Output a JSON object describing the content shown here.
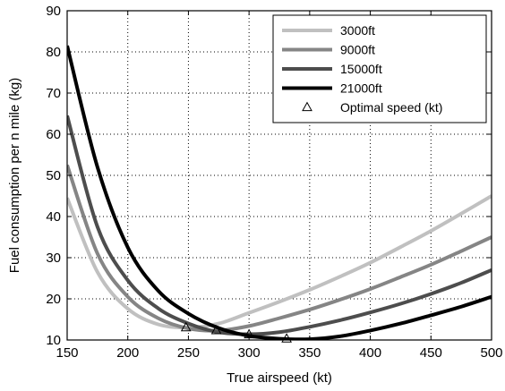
{
  "chart_data": {
    "type": "line",
    "xlabel": "True airspeed (kt)",
    "ylabel": "Fuel consumption per n mile (kg)",
    "xlim": [
      150,
      500
    ],
    "ylim": [
      10,
      90
    ],
    "xticks": [
      150,
      200,
      250,
      300,
      350,
      400,
      450,
      500
    ],
    "yticks": [
      10,
      20,
      30,
      40,
      50,
      60,
      70,
      80,
      90
    ],
    "grid": "dotted",
    "legend_position": "top-right",
    "x": [
      150,
      175,
      200,
      225,
      250,
      275,
      300,
      325,
      350,
      375,
      400,
      425,
      450,
      475,
      500
    ],
    "series": [
      {
        "name": "3000ft",
        "color": "#c0c0c0",
        "values": [
          44.5,
          26.5,
          17.6,
          13.8,
          13.0,
          14.0,
          16.6,
          19.3,
          22.2,
          25.4,
          28.8,
          32.6,
          36.5,
          40.7,
          45.0
        ]
      },
      {
        "name": "9000ft",
        "color": "#858585",
        "values": [
          52.5,
          31.0,
          20.5,
          15.3,
          12.8,
          12.3,
          13.4,
          15.3,
          17.4,
          19.8,
          22.4,
          25.3,
          28.3,
          31.6,
          35.0
        ]
      },
      {
        "name": "15000ft",
        "color": "#4d4d4d",
        "values": [
          64.5,
          37.5,
          24.5,
          17.7,
          14.0,
          11.9,
          11.4,
          11.9,
          13.2,
          14.8,
          16.7,
          18.8,
          21.2,
          23.9,
          27.0
        ]
      },
      {
        "name": "21000ft",
        "color": "#000000",
        "values": [
          81.5,
          52.0,
          32.5,
          22.0,
          16.4,
          12.9,
          11.0,
          10.3,
          10.2,
          10.9,
          12.3,
          14.0,
          16.0,
          18.1,
          20.5
        ]
      }
    ],
    "optimal_points": {
      "name": "Optimal speed (kt)",
      "x": [
        248,
        273,
        300,
        331
      ],
      "y": [
        13.0,
        12.3,
        11.3,
        10.3
      ]
    }
  }
}
